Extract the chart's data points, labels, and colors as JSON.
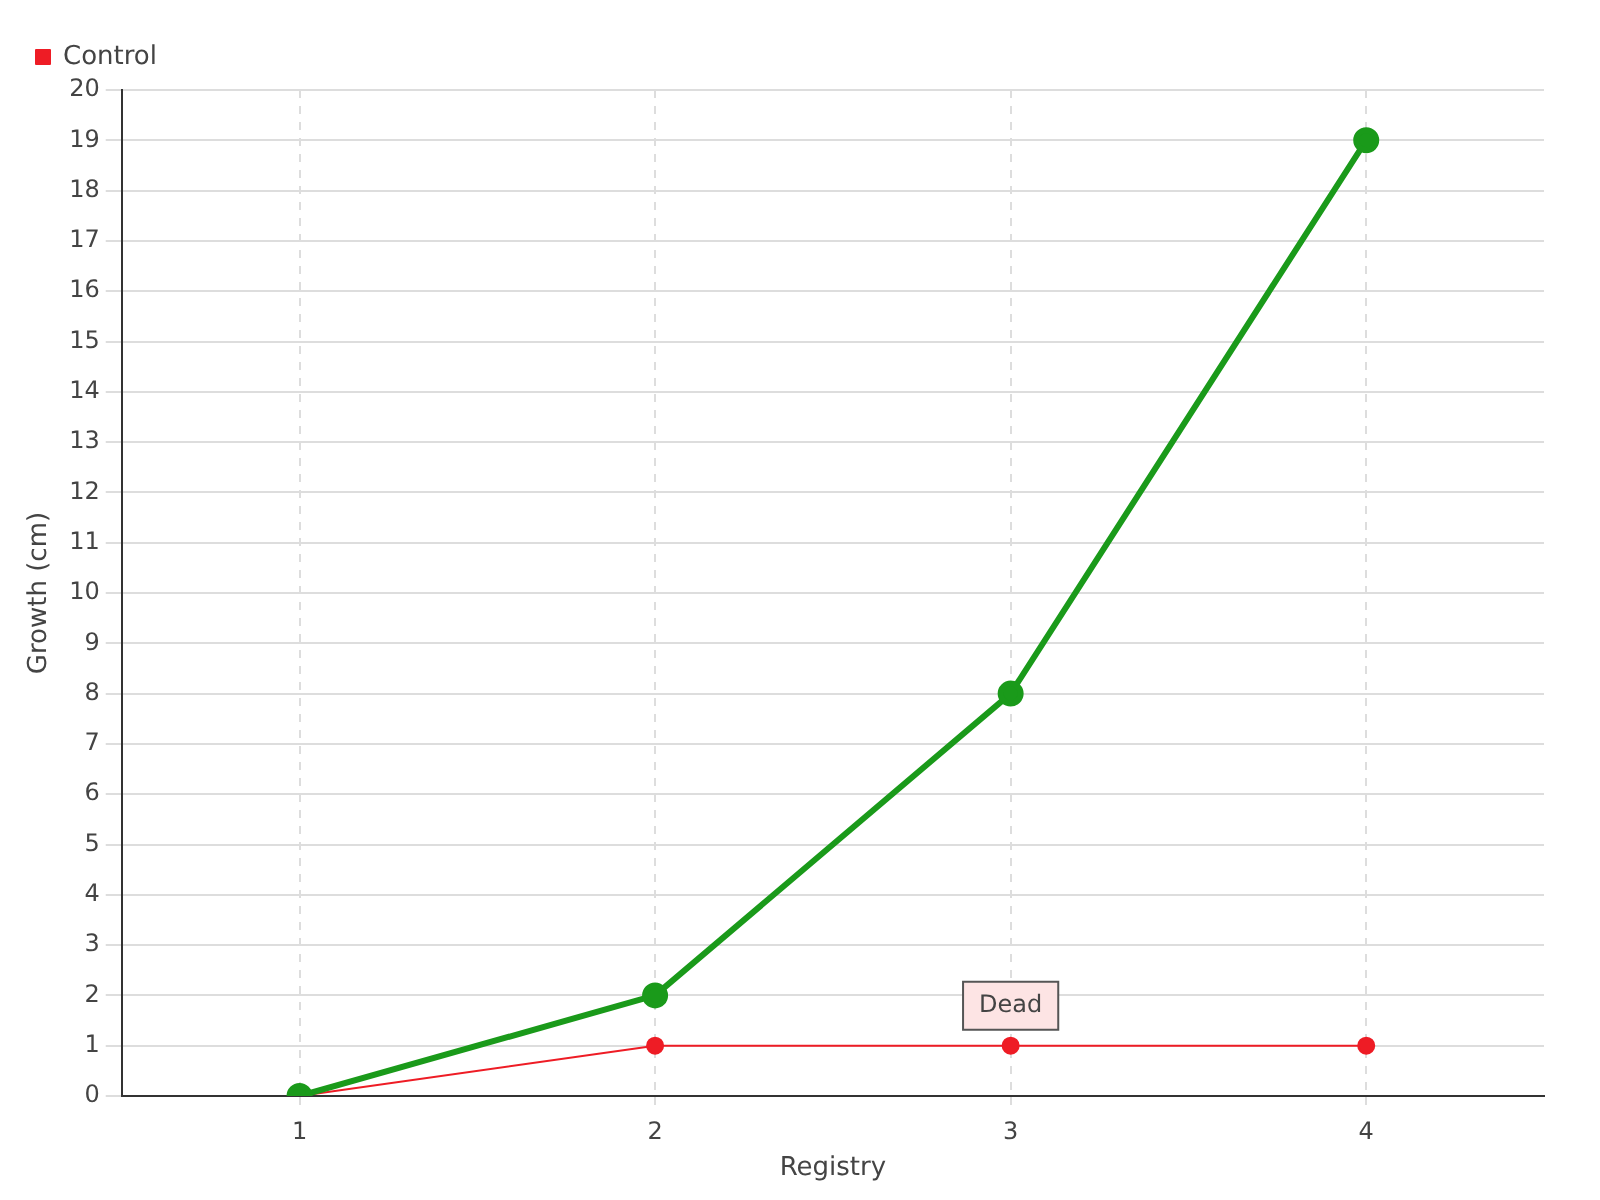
{
  "chart_data": {
    "type": "line",
    "xlabel": "Registry",
    "ylabel": "Growth (cm)",
    "categories": [
      "1",
      "2",
      "3",
      "4"
    ],
    "series": [
      {
        "color": "#1a9a1a",
        "values": [
          0,
          2,
          8,
          19
        ]
      },
      {
        "name": "Control",
        "color": "#ee1c25",
        "values": [
          0,
          1,
          1,
          1
        ]
      }
    ],
    "ylim": [
      0,
      20
    ],
    "yticks": [
      0,
      1,
      2,
      3,
      4,
      5,
      6,
      7,
      8,
      9,
      10,
      11,
      12,
      13,
      14,
      15,
      16,
      17,
      18,
      19,
      20
    ],
    "grid": true,
    "legend": "top left",
    "marker": "circle",
    "line_style": "solid",
    "annotations": [
      {
        "text": "Dead",
        "x": "3",
        "y": 1
      }
    ]
  }
}
